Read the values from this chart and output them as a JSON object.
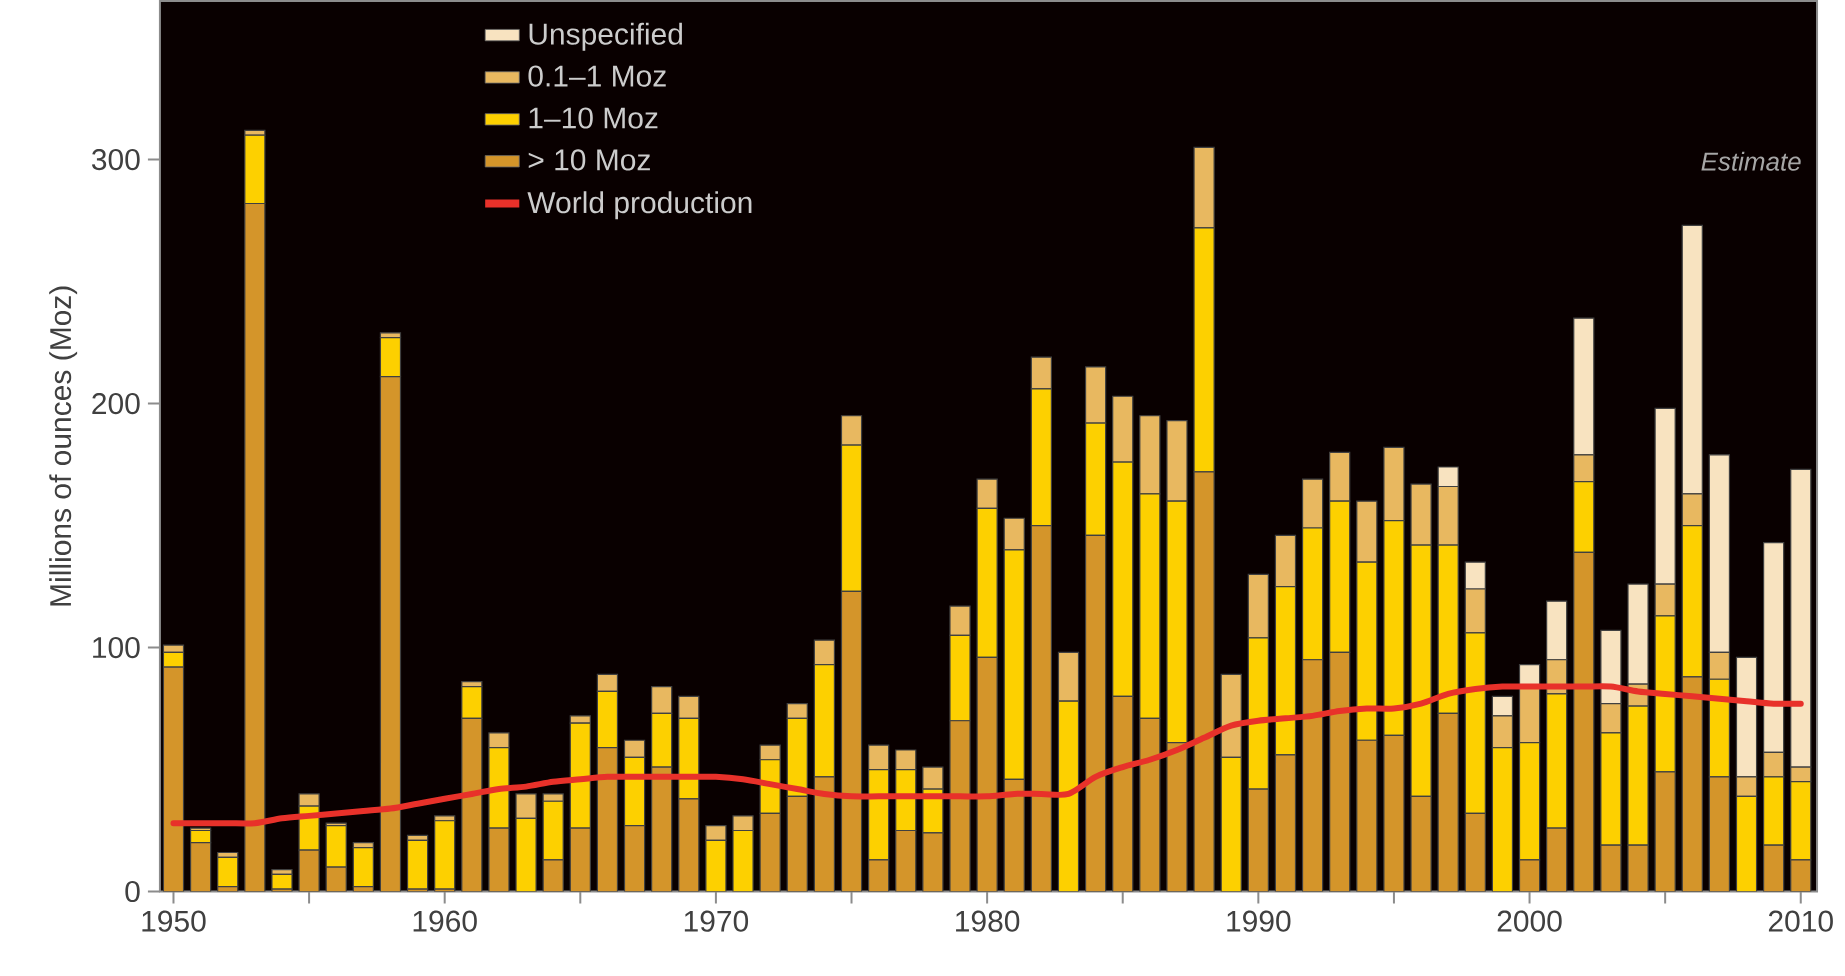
{
  "chart_data": {
    "type": "bar",
    "stacked": true,
    "ylabel": "Millions of ounces (Moz)",
    "x": [
      1950,
      1951,
      1952,
      1953,
      1954,
      1955,
      1956,
      1957,
      1958,
      1959,
      1960,
      1961,
      1962,
      1963,
      1964,
      1965,
      1966,
      1967,
      1968,
      1969,
      1970,
      1971,
      1972,
      1973,
      1974,
      1975,
      1976,
      1977,
      1978,
      1979,
      1980,
      1981,
      1982,
      1983,
      1984,
      1985,
      1986,
      1987,
      1988,
      1989,
      1990,
      1991,
      1992,
      1993,
      1994,
      1995,
      1996,
      1997,
      1998,
      1999,
      2000,
      2001,
      2002,
      2003,
      2004,
      2005,
      2006,
      2007,
      2008,
      2009,
      2010
    ],
    "xlim": [
      1949.5,
      2010.6
    ],
    "ylim": [
      0,
      365
    ],
    "xticks": [
      1950,
      {
        "value": 1955,
        "label": null
      },
      1960,
      {
        "value": 1965,
        "label": null
      },
      1970,
      {
        "value": 1975,
        "label": null
      },
      1980,
      {
        "value": 1985,
        "label": null
      },
      1990,
      {
        "value": 1995,
        "label": null
      },
      2000,
      {
        "value": 2005,
        "label": null
      },
      2010
    ],
    "yticks": [
      0,
      100,
      200,
      300
    ],
    "series": [
      {
        "name": "> 10 Moz",
        "color": "#d4952a",
        "values": [
          92,
          20,
          2,
          282,
          1,
          17,
          10,
          2,
          211,
          1,
          1,
          71,
          26,
          0,
          13,
          26,
          59,
          27,
          51,
          38,
          0,
          0,
          32,
          39,
          47,
          123,
          13,
          25,
          24,
          70,
          96,
          46,
          150,
          0,
          146,
          80,
          71,
          61,
          172,
          0,
          42,
          56,
          95,
          98,
          62,
          64,
          39,
          73,
          32,
          0,
          13,
          26,
          139,
          19,
          19,
          49,
          88,
          47,
          0,
          19,
          13
        ]
      },
      {
        "name": "1–10 Moz",
        "color": "#fdd000",
        "values": [
          6,
          5,
          12,
          28,
          6,
          18,
          17,
          16,
          16,
          20,
          28,
          13,
          33,
          30,
          24,
          43,
          23,
          28,
          22,
          33,
          21,
          25,
          22,
          32,
          46,
          60,
          37,
          25,
          18,
          35,
          61,
          94,
          56,
          78,
          46,
          96,
          92,
          99,
          100,
          55,
          62,
          69,
          54,
          62,
          73,
          88,
          103,
          69,
          74,
          59,
          48,
          55,
          29,
          46,
          57,
          64,
          62,
          40,
          39,
          28,
          32
        ]
      },
      {
        "name": "0.1–1 Moz",
        "color": "#e8b860",
        "values": [
          3,
          1,
          2,
          2,
          2,
          5,
          1,
          2,
          2,
          2,
          2,
          2,
          6,
          10,
          3,
          3,
          7,
          7,
          11,
          9,
          6,
          6,
          6,
          6,
          10,
          12,
          10,
          8,
          9,
          12,
          12,
          13,
          13,
          20,
          23,
          27,
          32,
          33,
          33,
          34,
          26,
          21,
          20,
          20,
          25,
          30,
          25,
          24,
          18,
          13,
          23,
          14,
          11,
          12,
          9,
          13,
          13,
          11,
          8,
          10,
          6
        ]
      },
      {
        "name": "Unspecified",
        "color": "#f8e3c0",
        "values": [
          0,
          0,
          0,
          0,
          0,
          0,
          0,
          0,
          0,
          0,
          0,
          0,
          0,
          0,
          0,
          0,
          0,
          0,
          0,
          0,
          0,
          0,
          0,
          0,
          0,
          0,
          0,
          0,
          0,
          0,
          0,
          0,
          0,
          0,
          0,
          0,
          0,
          0,
          0,
          0,
          0,
          0,
          0,
          0,
          0,
          0,
          0,
          8,
          11,
          8,
          9,
          24,
          56,
          30,
          41,
          72,
          110,
          81,
          49,
          86,
          122
        ]
      },
      {
        "name": "World production",
        "type": "line",
        "color": "#e8312a",
        "values": [
          28,
          28,
          28,
          28,
          30,
          31,
          32,
          33,
          34,
          36,
          38,
          40,
          42,
          43,
          45,
          46,
          47,
          47,
          47,
          47,
          47,
          46,
          44,
          42,
          40,
          39,
          39,
          39,
          39,
          39,
          39,
          40,
          40,
          40,
          47,
          51,
          54,
          58,
          63,
          68,
          70,
          71,
          72,
          74,
          75,
          75,
          77,
          81,
          83,
          84,
          84,
          84,
          84,
          84,
          82,
          81,
          80,
          79,
          78,
          77,
          77
        ]
      }
    ],
    "legend": "top left",
    "annotations": [
      "Estimate"
    ]
  }
}
